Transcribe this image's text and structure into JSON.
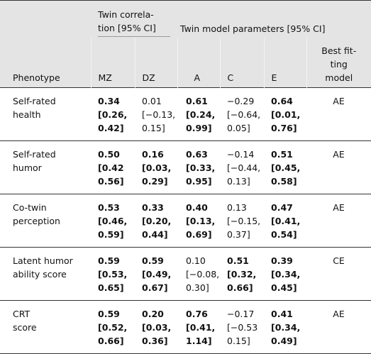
{
  "table": {
    "group_headers": {
      "correlation": [
        "Twin correla-",
        "tion [95% CI]"
      ],
      "parameters": "Twin model parameters [95% CI]"
    },
    "columns": {
      "phenotype": "Phenotype",
      "values": [
        "MZ",
        "DZ",
        "A",
        "C",
        "E"
      ],
      "model": [
        "Best fit-",
        "ting",
        "model"
      ]
    },
    "rows": [
      {
        "phenotype": [
          "Self-rated",
          "health"
        ],
        "cells": [
          {
            "lines": [
              "0.34",
              "[0.26,",
              "0.42]"
            ],
            "bold": true
          },
          {
            "lines": [
              "0.01",
              "[−0.13,",
              "0.15]"
            ],
            "bold": false
          },
          {
            "lines": [
              "0.61",
              "[0.24,",
              "0.99]"
            ],
            "bold": true
          },
          {
            "lines": [
              "−0.29",
              "[−0.64,",
              "0.05]"
            ],
            "bold": false
          },
          {
            "lines": [
              "0.64",
              "[0.01,",
              "0.76]"
            ],
            "bold": true
          }
        ],
        "model": "AE"
      },
      {
        "phenotype": [
          "Self-rated",
          "humor"
        ],
        "cells": [
          {
            "lines": [
              "0.50",
              "[0.42",
              "0.56]"
            ],
            "bold": true
          },
          {
            "lines": [
              "0.16",
              "[0.03,",
              "0.29]"
            ],
            "bold": true
          },
          {
            "lines": [
              "0.63",
              "[0.33,",
              "0.95]"
            ],
            "bold": true
          },
          {
            "lines": [
              "−0.14",
              "[−0.44,",
              "0.13]"
            ],
            "bold": false
          },
          {
            "lines": [
              "0.51",
              "[0.45,",
              "0.58]"
            ],
            "bold": true
          }
        ],
        "model": "AE"
      },
      {
        "phenotype": [
          "Co-twin",
          "perception"
        ],
        "cells": [
          {
            "lines": [
              "0.53",
              "[0.46,",
              "0.59]"
            ],
            "bold": true
          },
          {
            "lines": [
              "0.33",
              "[0.20,",
              "0.44]"
            ],
            "bold": true
          },
          {
            "lines": [
              "0.40",
              "[0.13,",
              "0.69]"
            ],
            "bold": true
          },
          {
            "lines": [
              "0.13",
              "[−0.15,",
              "0.37]"
            ],
            "bold": false
          },
          {
            "lines": [
              "0.47",
              "[0.41,",
              "0.54]"
            ],
            "bold": true
          }
        ],
        "model": "AE"
      },
      {
        "phenotype": [
          "Latent humor",
          "ability score"
        ],
        "cells": [
          {
            "lines": [
              "0.59",
              "[0.53,",
              "0.65]"
            ],
            "bold": true
          },
          {
            "lines": [
              "0.59",
              "[0.49,",
              "0.67]"
            ],
            "bold": true
          },
          {
            "lines": [
              "0.10",
              "[−0.08,",
              "0.30]"
            ],
            "bold": false
          },
          {
            "lines": [
              "0.51",
              "[0.32,",
              "0.66]"
            ],
            "bold": true
          },
          {
            "lines": [
              "0.39",
              "[0.34,",
              "0.45]"
            ],
            "bold": true
          }
        ],
        "model": "CE"
      },
      {
        "phenotype": [
          "CRT",
          "score"
        ],
        "cells": [
          {
            "lines": [
              "0.59",
              "[0.52,",
              "0.66]"
            ],
            "bold": true
          },
          {
            "lines": [
              "0.20",
              "[0.03,",
              "0.36]"
            ],
            "bold": true
          },
          {
            "lines": [
              "0.76",
              "[0.41,",
              "1.14]"
            ],
            "bold": true
          },
          {
            "lines": [
              "−0.17",
              "[−0.53",
              "0.15]"
            ],
            "bold": false
          },
          {
            "lines": [
              "0.41",
              "[0.34,",
              "0.49]"
            ],
            "bold": true
          }
        ],
        "model": "AE"
      }
    ]
  }
}
